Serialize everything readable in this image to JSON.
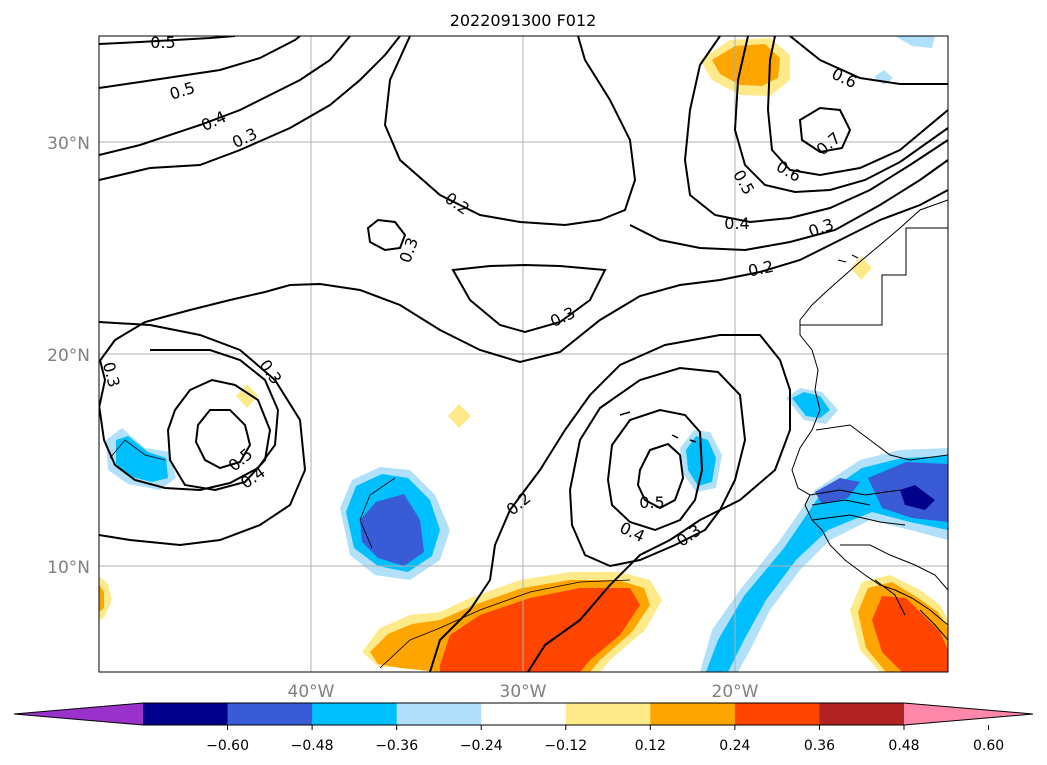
{
  "title": "2022091300 F012",
  "map": {
    "lat_labels": [
      "30°N",
      "20°N",
      "10°N"
    ],
    "lon_labels": [
      "40°W",
      "30°W",
      "20°W"
    ],
    "contour_labels": [
      "0.5",
      "0.5",
      "0.4",
      "0.3",
      "0.2",
      "0.3",
      "0.3",
      "0.3",
      "0.3",
      "0.5",
      "0.4",
      "0.6",
      "0.7",
      "0.5",
      "0.6",
      "0.4",
      "0.3",
      "0.2",
      "0.2",
      "0.5",
      "0.4",
      "0.3"
    ]
  },
  "colorbar": {
    "ticks": [
      "−0.60",
      "−0.48",
      "−0.36",
      "−0.24",
      "−0.12",
      "0.12",
      "0.24",
      "0.36",
      "0.48",
      "0.60"
    ],
    "colors": [
      "#9932cc",
      "#00008b",
      "#3a5bd6",
      "#00bfff",
      "#b0e0fa",
      "#ffffff",
      "#ffea8a",
      "#ffa500",
      "#ff4500",
      "#b22222",
      "#ff88aa"
    ]
  },
  "shading_colors": {
    "light_blue": "#b0e0fa",
    "blue": "#00bfff",
    "royal_blue": "#3a5bd6",
    "navy": "#00008b",
    "light_yellow": "#ffea8a",
    "orange": "#ffa500",
    "red_orange": "#ff4500"
  }
}
